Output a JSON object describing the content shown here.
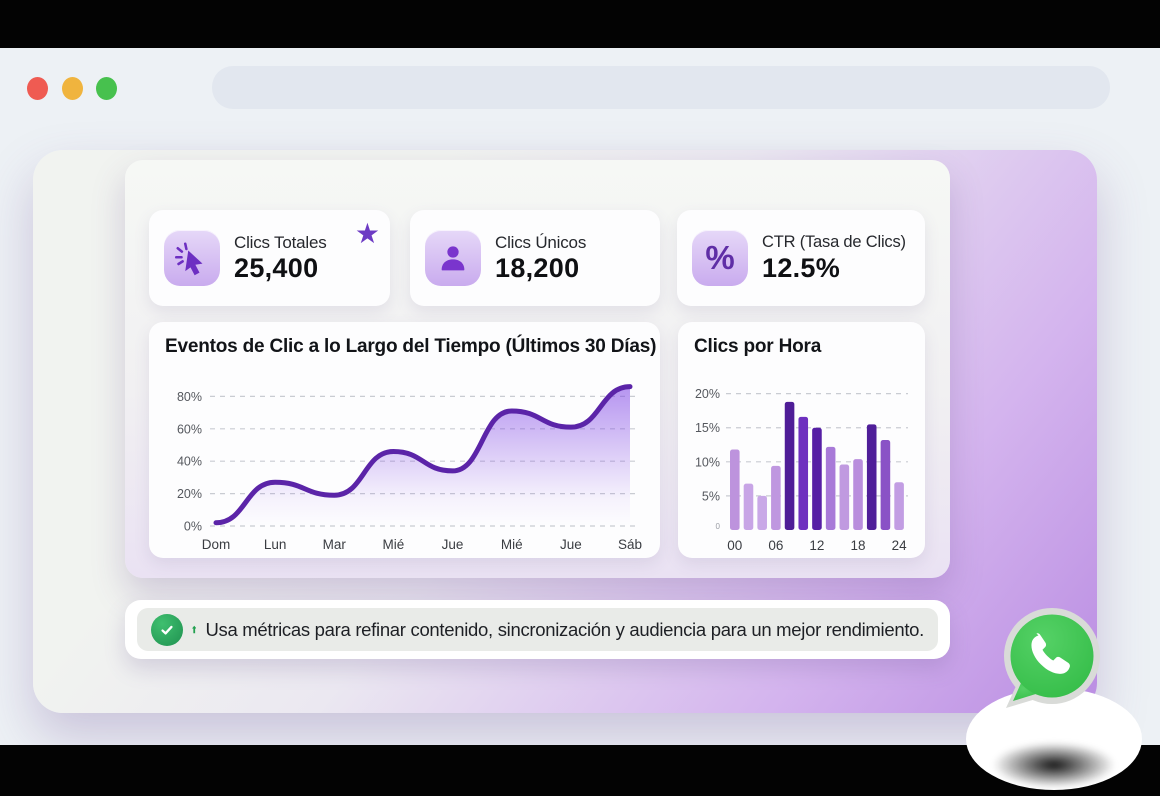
{
  "browser": {
    "window_buttons": [
      "close",
      "minimize",
      "maximize"
    ],
    "address_value": ""
  },
  "app_window": {
    "window_buttons": [
      "close",
      "minimize",
      "maximize"
    ]
  },
  "stats": [
    {
      "label": "Clics Totales",
      "value": "25,400",
      "icon": "cursor-click-icon",
      "starred": "★"
    },
    {
      "label": "Clics Únicos",
      "value": "18,200",
      "icon": "user-icon"
    },
    {
      "label": "CTR (Tasa de Clics)",
      "value": "12.5%",
      "icon": "percent-icon",
      "icon_glyph": "%"
    }
  ],
  "chart_data": [
    {
      "type": "area",
      "title": "Eventos de Clic a lo Largo del Tiempo (Últimos 30 Días)",
      "x_labels": [
        "Dom",
        "Lun",
        "Mar",
        "Mié",
        "Jue",
        "Mié",
        "Jue",
        "Sáb"
      ],
      "values": [
        2,
        27,
        19,
        46,
        34,
        71,
        61,
        86
      ],
      "yticks": [
        0,
        20,
        40,
        60,
        80
      ],
      "ytick_labels": [
        "0%",
        "20%",
        "40%",
        "60%",
        "80%"
      ],
      "ylim": [
        0,
        100
      ],
      "grid": "dashed-horizontal",
      "legend": "none",
      "line_color": "#5b24a8",
      "fill_color": "#7b3fe4"
    },
    {
      "type": "bar",
      "title": "Clics por Hora",
      "values": [
        11.8,
        6.8,
        5,
        9.4,
        18.8,
        16.6,
        15,
        12.2,
        9.6,
        10.4,
        15.5,
        13.2,
        7
      ],
      "bar_colors": [
        "#bd93dd",
        "#c8a5e6",
        "#c9a8e7",
        "#bf97e0",
        "#4f1d97",
        "#6e30bf",
        "#561fa5",
        "#a87ad8",
        "#c09ae0",
        "#b98edd",
        "#4f1e99",
        "#8a52c6",
        "#c29de3"
      ],
      "yticks": [
        5,
        10,
        15,
        20
      ],
      "ytick_labels": [
        "5%",
        "10%",
        "15%",
        "20%"
      ],
      "zero_label": "0",
      "x_tick_map": {
        "0": "00",
        "3": "06",
        "6": "12",
        "9": "18",
        "12": "24"
      },
      "ylim": [
        0,
        22
      ],
      "grid": "dashed-horizontal",
      "legend": "none"
    }
  ],
  "banner": {
    "text": "Usa métricas para refinar contenido, sincronización y audiencia para un mejor rendimiento.",
    "icons": [
      "check-circle-icon",
      "arrow-up-icon"
    ]
  },
  "fab": {
    "app": "WhatsApp",
    "icon": "whatsapp-icon"
  },
  "colors": {
    "accent_purple": "#6d2fc2",
    "line_purple": "#5b24a8",
    "tile_purple": "#cfb2ef",
    "success_green": "#2ca45c",
    "whatsapp_green": "#40c351",
    "letterbox_black": "#030303",
    "page_bg": "#edf1f5"
  }
}
